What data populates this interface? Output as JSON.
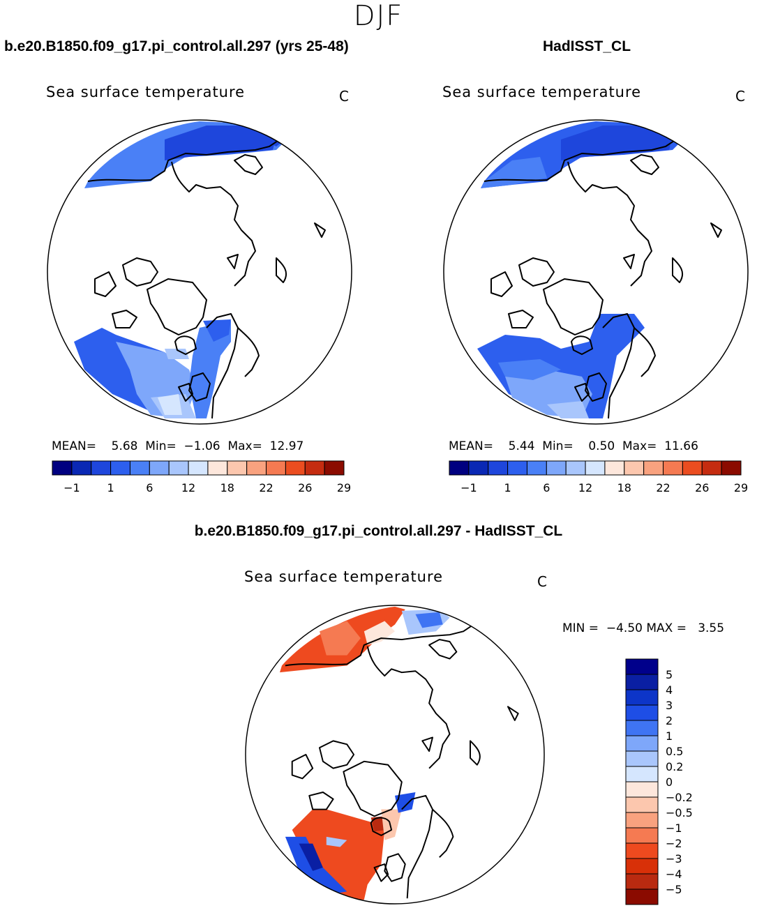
{
  "figure": {
    "season": "DJF",
    "variable": "Sea surface temperature",
    "units": "C"
  },
  "panels": [
    {
      "id": "model",
      "title": "b.e20.B1850.f09_g17.pi_control.all.297 (yrs 25-48)",
      "variable": "Sea surface temperature",
      "units": "C",
      "stats": {
        "mean_label": "MEAN=",
        "mean": "5.68",
        "min_label": "Min=",
        "min": "−1.06",
        "max_label": "Max=",
        "max": "12.97"
      }
    },
    {
      "id": "obs",
      "title": "HadISST_CL",
      "variable": "Sea surface temperature",
      "units": "C",
      "stats": {
        "mean_label": "MEAN=",
        "mean": "5.44",
        "min_label": "Min=",
        "min": "0.50",
        "max_label": "Max=",
        "max": "11.66"
      }
    },
    {
      "id": "diff",
      "title": "b.e20.B1850.f09_g17.pi_control.all.297 - HadISST_CL",
      "variable": "Sea surface temperature",
      "units": "C",
      "stats": {
        "min_label": "MIN =",
        "min": "−4.50",
        "max_label": "MAX =",
        "max": "3.55"
      }
    }
  ],
  "colorbar_abs": {
    "colors": [
      "#000080",
      "#0a28b4",
      "#1e46dc",
      "#2d5fee",
      "#4a80f6",
      "#7ea7fa",
      "#a9c6fc",
      "#d5e6fe",
      "#fde7dc",
      "#fcc7ae",
      "#f9a27f",
      "#f57a52",
      "#eb4d20",
      "#c52c10",
      "#8b0b00"
    ],
    "tick_labels": [
      "−1",
      "1",
      "6",
      "12",
      "18",
      "22",
      "26",
      "29"
    ]
  },
  "colorbar_diff": {
    "colors": [
      "#00008b",
      "#0a1fa3",
      "#0d35c8",
      "#1e4ee6",
      "#3f74f3",
      "#7ea7fa",
      "#a9c6fc",
      "#d5e6fe",
      "#fde7dc",
      "#fcc7ae",
      "#f9a27f",
      "#f57a52",
      "#ee4a1f",
      "#d83008",
      "#b92a10",
      "#8b0b00"
    ],
    "tick_labels": [
      "5",
      "4",
      "3",
      "2",
      "1",
      "0.5",
      "0.2",
      "0",
      "−0.2",
      "−0.5",
      "−1",
      "−2",
      "−3",
      "−4",
      "−5"
    ]
  },
  "map_colors": {
    "land": "#ffffff",
    "coast": "#000000"
  }
}
